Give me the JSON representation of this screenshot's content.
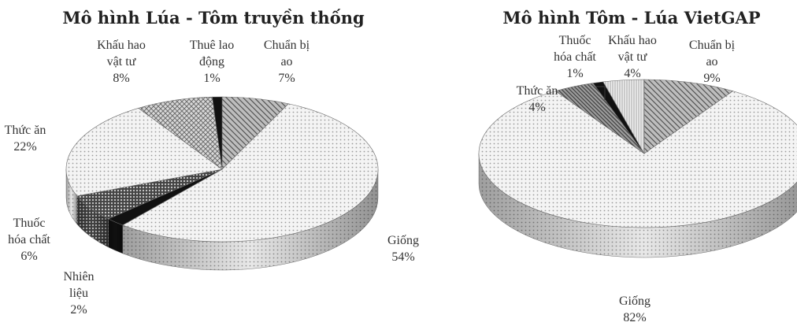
{
  "chart_data": [
    {
      "type": "pie",
      "title": "Mô hình Lúa - Tôm truyền thống",
      "categories": [
        "Chuẩn bị ao",
        "Giống",
        "Nhiên liệu",
        "Thuốc hóa chất",
        "Thức ăn",
        "Khấu hao vật tư",
        "Thuê lao động"
      ],
      "values": [
        7,
        54,
        2,
        6,
        22,
        8,
        1
      ],
      "labels": [
        [
          "Chuẩn bị",
          "ao",
          "7%"
        ],
        [
          "Giống",
          "54%"
        ],
        [
          "Nhiên",
          "liệu",
          "2%"
        ],
        [
          "Thuốc",
          "hóa chất",
          "6%"
        ],
        [
          "Thức ăn",
          "22%"
        ],
        [
          "Khấu hao",
          "vật tư",
          "8%"
        ],
        [
          "Thuê lao",
          "động",
          "1%"
        ]
      ],
      "patterns": [
        "diag-light",
        "dots-light",
        "solid-black",
        "dense-dots",
        "dots-light",
        "crosshatch",
        "solid-black"
      ]
    },
    {
      "type": "pie",
      "title": "Mô hình Tôm - Lúa VietGAP",
      "categories": [
        "Chuẩn bị ao",
        "Giống",
        "Thức ăn",
        "Thuốc hóa chất",
        "Khấu hao vật tư"
      ],
      "values": [
        9,
        82,
        4,
        1,
        4
      ],
      "labels": [
        [
          "Chuẩn bị",
          "ao",
          "9%"
        ],
        [
          "Giống",
          "82%"
        ],
        [
          "Thức ăn",
          "4%"
        ],
        [
          "Thuốc",
          "hóa chất",
          "1%"
        ],
        [
          "Khấu hao",
          "vật tư",
          "4%"
        ]
      ],
      "patterns": [
        "diag-light",
        "dots-light",
        "diag-dense",
        "solid-black",
        "vstripe"
      ]
    }
  ]
}
